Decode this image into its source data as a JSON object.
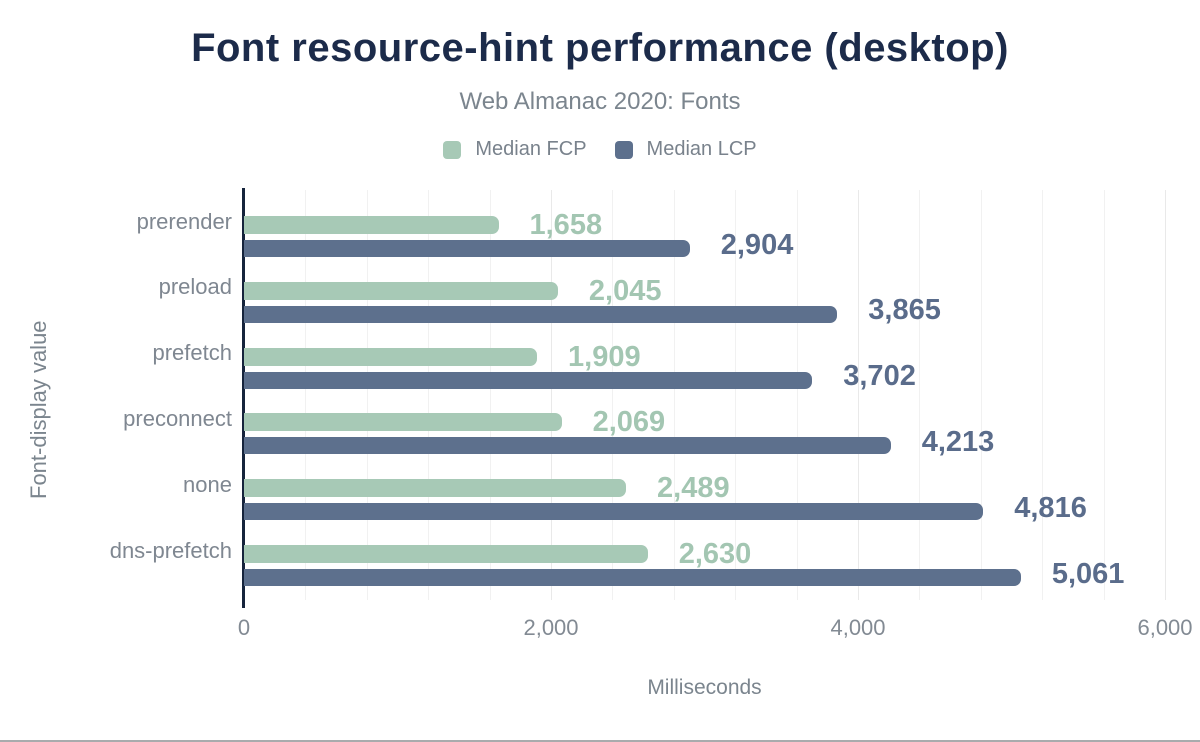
{
  "page": {
    "title": "Font resource-hint performance (desktop)",
    "subtitle": "Web Almanac 2020: Fonts"
  },
  "chart_data": {
    "type": "bar",
    "orientation": "horizontal",
    "title": "Font resource-hint performance (desktop)",
    "subtitle": "Web Almanac 2020: Fonts",
    "categories": [
      "prerender",
      "preload",
      "prefetch",
      "preconnect",
      "none",
      "dns-prefetch"
    ],
    "series": [
      {
        "name": "Median FCP",
        "color": "#a7c9b6",
        "label_color": "#a3c6b2",
        "values": [
          1658,
          2045,
          1909,
          2069,
          2489,
          2630
        ]
      },
      {
        "name": "Median LCP",
        "color": "#5d708d",
        "label_color": "#5a6c8b",
        "values": [
          2904,
          3865,
          3702,
          4213,
          4816,
          5061
        ]
      }
    ],
    "xlabel": "Milliseconds",
    "ylabel": "Font-display value",
    "xlim": [
      0,
      6000
    ],
    "xticks": [
      {
        "value": 0,
        "label": "0"
      },
      {
        "value": 2000,
        "label": "2,000"
      },
      {
        "value": 4000,
        "label": "4,000"
      },
      {
        "value": 6000,
        "label": "6,000"
      }
    ],
    "minor_grid_step_ms": 400,
    "grid": "vertical-minor",
    "legend_position": "top",
    "colors": {
      "title": "#1c2b4a",
      "muted_text": "#7b858e",
      "axis_line": "#16243c",
      "grid_minor": "#f1f1f1",
      "grid_major": "#e9e9e9"
    }
  }
}
